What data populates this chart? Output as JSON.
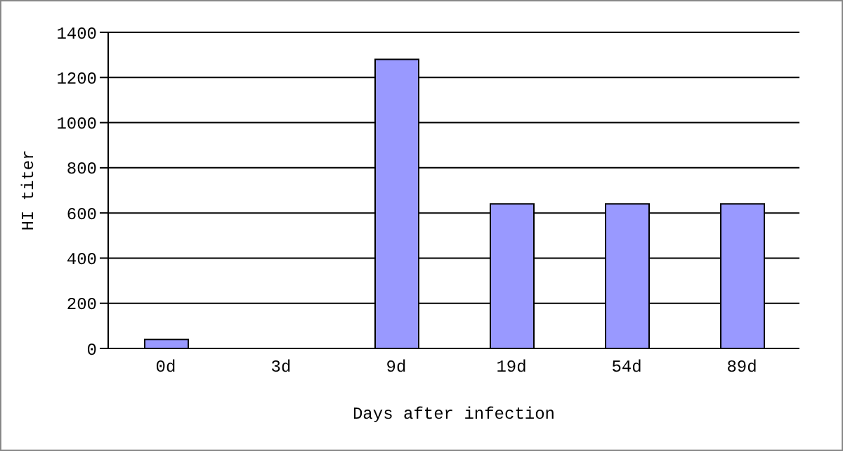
{
  "chart_data": {
    "type": "bar",
    "xlabel": "Days after infection",
    "ylabel": "HI titer",
    "categories": [
      "0d",
      "3d",
      "9d",
      "19d",
      "54d",
      "89d"
    ],
    "values": [
      40,
      0,
      1280,
      640,
      640,
      640
    ],
    "color": "#9999ff",
    "ylim": [
      0,
      1400
    ],
    "yticks": [
      0,
      200,
      400,
      600,
      800,
      1000,
      1200,
      1400
    ],
    "grid": "y"
  }
}
